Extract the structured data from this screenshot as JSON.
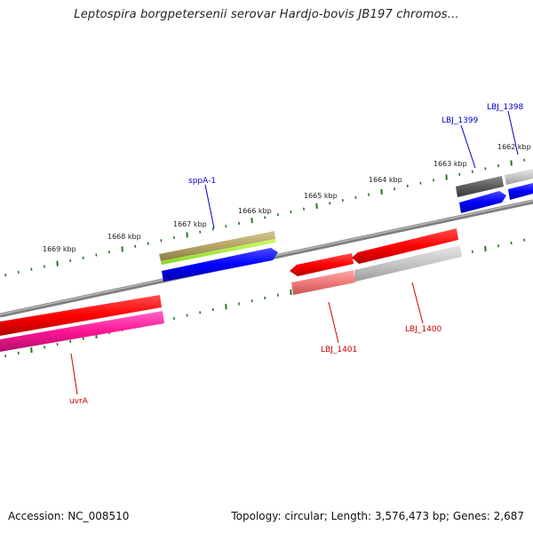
{
  "title": "Leptospira borgpetersenii serovar Hardjo-bovis JB197 chromos...",
  "footer": {
    "accession": "Accession: NC_008510",
    "summary": "Topology: circular; Length: 3,576,473 bp; Genes: 2,687"
  },
  "colors": {
    "backbone": "#7f7f7f",
    "tick": "#1f7a1f",
    "label_forward": "#0000cc",
    "label_reverse": "#cc0000"
  },
  "scale_ticks": [
    {
      "label": "1662 kbp"
    },
    {
      "label": "1663 kbp"
    },
    {
      "label": "1664 kbp"
    },
    {
      "label": "1665 kbp"
    },
    {
      "label": "1666 kbp"
    },
    {
      "label": "1667 kbp"
    },
    {
      "label": "1668 kbp"
    },
    {
      "label": "1669 kbp"
    }
  ],
  "gene_labels": [
    {
      "name": "LBJ_1398",
      "strand": "forward"
    },
    {
      "name": "LBJ_1399",
      "strand": "forward"
    },
    {
      "name": "sppA-1",
      "strand": "forward"
    },
    {
      "name": "LBJ_1400",
      "strand": "reverse"
    },
    {
      "name": "LBJ_1401",
      "strand": "reverse"
    },
    {
      "name": "uvrA",
      "strand": "reverse"
    }
  ]
}
